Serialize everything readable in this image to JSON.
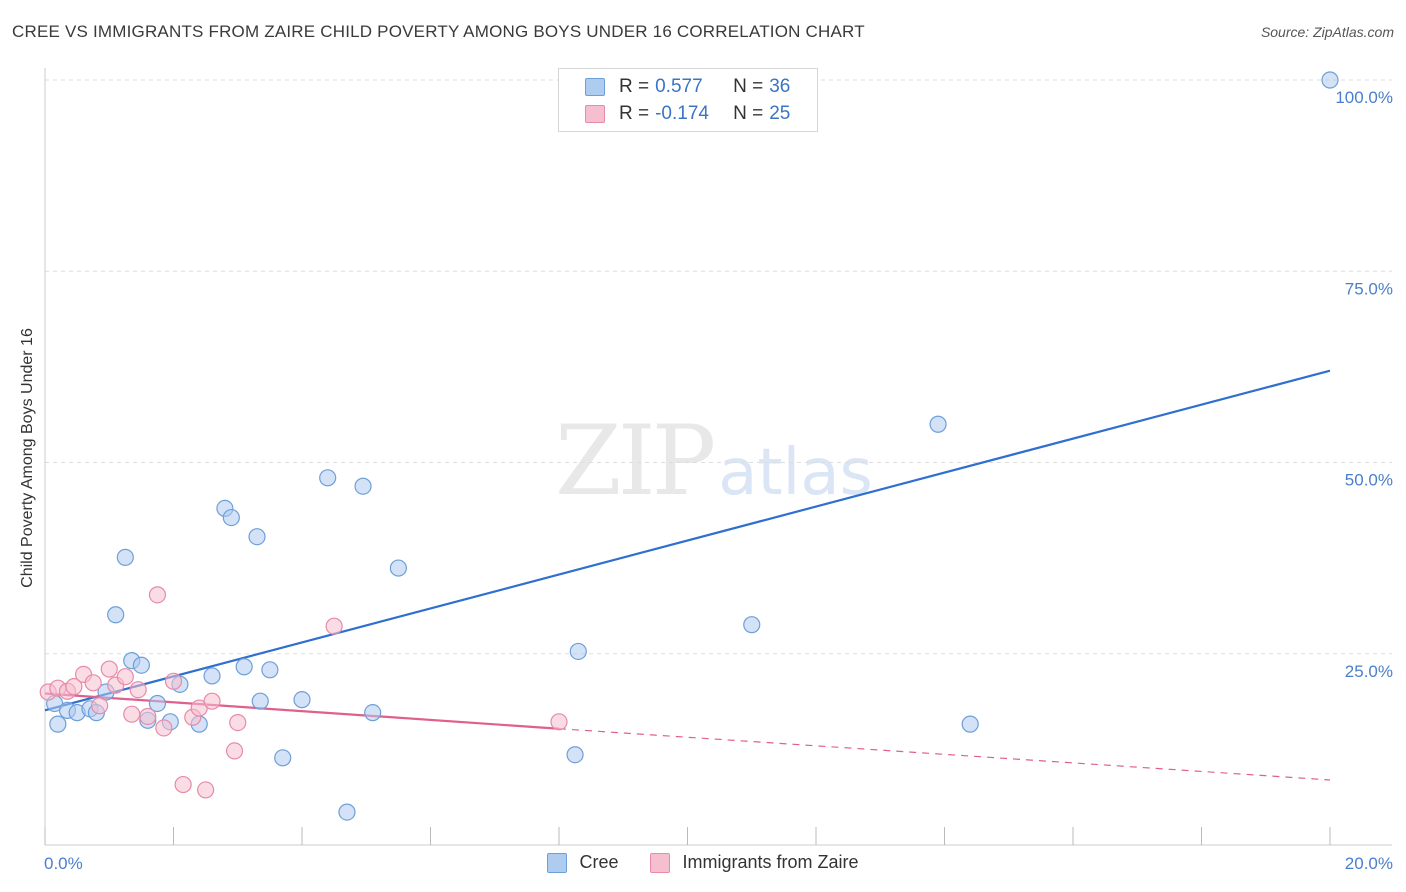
{
  "title": "CREE VS IMMIGRANTS FROM ZAIRE CHILD POVERTY AMONG BOYS UNDER 16 CORRELATION CHART",
  "source": "Source: ZipAtlas.com",
  "watermark": {
    "zip": "ZIP",
    "atlas": "atlas"
  },
  "legend": {
    "cree": {
      "r_label": "R =",
      "r_value": "0.577",
      "n_label": "N =",
      "n_value": "36"
    },
    "zaire": {
      "r_label": "R =",
      "r_value": "-0.174",
      "n_label": "N =",
      "n_value": "25"
    }
  },
  "bottom_legend": {
    "cree": "Cree",
    "zaire": "Immigrants from Zaire"
  },
  "colors": {
    "cree_fill": "#aecbf0",
    "cree_stroke": "#6f9fd8",
    "cree_line": "#2f6fcf",
    "zaire_fill": "#f6bfd0",
    "zaire_stroke": "#e88aa9",
    "zaire_line": "#e0608c",
    "tick": "#4a7fcb",
    "grid": "#dddddd"
  },
  "chart_data": {
    "type": "scatter",
    "title": "CREE VS IMMIGRANTS FROM ZAIRE CHILD POVERTY AMONG BOYS UNDER 16 CORRELATION CHART",
    "xlabel": "",
    "ylabel": "Child Poverty Among Boys Under 16",
    "xlim": [
      0,
      20
    ],
    "ylim": [
      0,
      102
    ],
    "x_tick_labels": [
      {
        "value": 0,
        "label": "0.0%"
      },
      {
        "value": 20,
        "label": "20.0%"
      }
    ],
    "y_tick_labels": [
      {
        "value": 25,
        "label": "25.0%"
      },
      {
        "value": 50,
        "label": "50.0%"
      },
      {
        "value": 75,
        "label": "75.0%"
      },
      {
        "value": 100,
        "label": "100.0%"
      }
    ],
    "series": [
      {
        "name": "Cree",
        "points": [
          [
            0.15,
            18.5
          ],
          [
            0.2,
            15.8
          ],
          [
            0.35,
            17.6
          ],
          [
            0.5,
            17.3
          ],
          [
            0.7,
            17.8
          ],
          [
            0.8,
            17.3
          ],
          [
            0.95,
            20.0
          ],
          [
            1.1,
            30.1
          ],
          [
            1.25,
            37.6
          ],
          [
            1.35,
            24.1
          ],
          [
            1.5,
            23.5
          ],
          [
            1.6,
            16.3
          ],
          [
            1.75,
            18.5
          ],
          [
            1.95,
            16.1
          ],
          [
            2.1,
            21.0
          ],
          [
            2.4,
            15.8
          ],
          [
            2.6,
            22.1
          ],
          [
            2.8,
            44.0
          ],
          [
            2.9,
            42.8
          ],
          [
            3.3,
            40.3
          ],
          [
            3.1,
            23.3
          ],
          [
            3.35,
            18.8
          ],
          [
            3.5,
            22.9
          ],
          [
            3.7,
            11.4
          ],
          [
            4.0,
            19.0
          ],
          [
            4.4,
            48.0
          ],
          [
            4.7,
            4.3
          ],
          [
            4.95,
            46.9
          ],
          [
            5.1,
            17.3
          ],
          [
            5.5,
            36.2
          ],
          [
            8.3,
            25.3
          ],
          [
            8.25,
            11.8
          ],
          [
            11.0,
            28.8
          ],
          [
            13.9,
            55.0
          ],
          [
            14.4,
            15.8
          ],
          [
            20.0,
            100.0
          ]
        ]
      },
      {
        "name": "Immigrants from Zaire",
        "points": [
          [
            0.05,
            20.0
          ],
          [
            0.2,
            20.5
          ],
          [
            0.35,
            20.1
          ],
          [
            0.45,
            20.7
          ],
          [
            0.6,
            22.3
          ],
          [
            0.75,
            21.2
          ],
          [
            0.85,
            18.2
          ],
          [
            1.0,
            23.0
          ],
          [
            1.1,
            20.9
          ],
          [
            1.25,
            22.0
          ],
          [
            1.35,
            17.1
          ],
          [
            1.45,
            20.3
          ],
          [
            1.6,
            16.8
          ],
          [
            1.75,
            32.7
          ],
          [
            1.85,
            15.3
          ],
          [
            2.0,
            21.4
          ],
          [
            2.15,
            7.9
          ],
          [
            2.3,
            16.7
          ],
          [
            2.4,
            17.9
          ],
          [
            2.5,
            7.2
          ],
          [
            2.6,
            18.8
          ],
          [
            2.95,
            12.3
          ],
          [
            3.0,
            16.0
          ],
          [
            4.5,
            28.6
          ],
          [
            8.0,
            16.1
          ]
        ]
      }
    ],
    "trend_lines": [
      {
        "series": "Cree",
        "from": [
          0,
          17.6
        ],
        "to": [
          20,
          62.0
        ],
        "style": "solid"
      },
      {
        "series": "Immigrants from Zaire",
        "from": [
          0,
          19.8
        ],
        "to": [
          8.0,
          15.2
        ],
        "style": "solid"
      },
      {
        "series": "Immigrants from Zaire",
        "from": [
          8.0,
          15.2
        ],
        "to": [
          20,
          8.5
        ],
        "style": "dashed"
      }
    ]
  }
}
